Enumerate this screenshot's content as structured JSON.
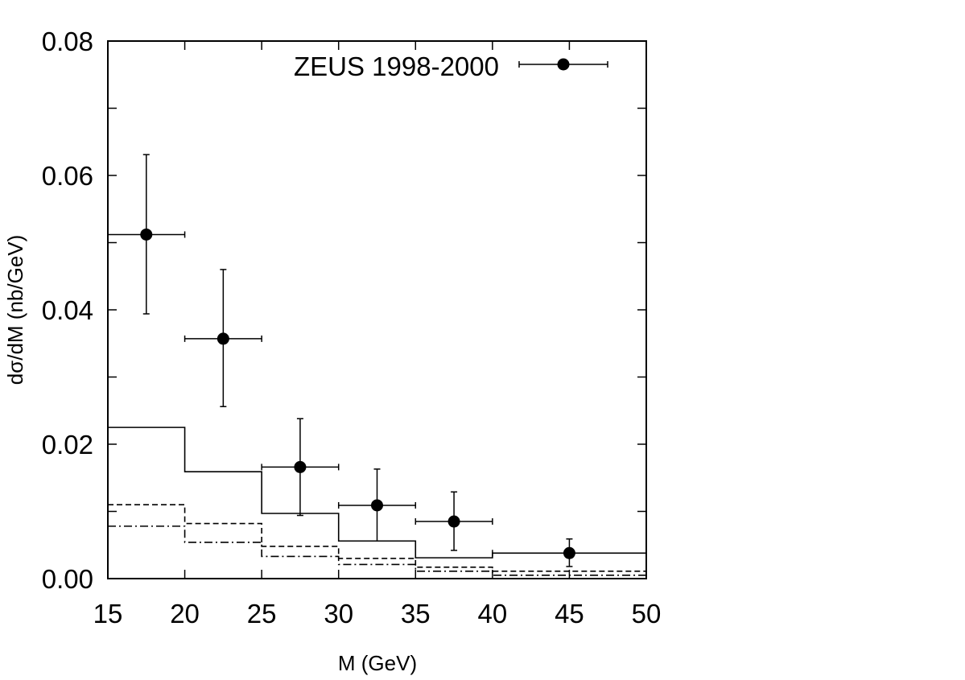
{
  "chart_data": {
    "type": "scatter",
    "title": "",
    "xlabel": "M (GeV)",
    "ylabel": "dσ/dM (nb/GeV)",
    "xlim": [
      15,
      50
    ],
    "ylim": [
      0,
      0.08
    ],
    "x_ticks": [
      15,
      20,
      25,
      30,
      35,
      40,
      45,
      50
    ],
    "x_tick_labels": [
      "15",
      "20",
      "25",
      "30",
      "35",
      "40",
      "45",
      "50"
    ],
    "y_ticks": [
      0,
      0.02,
      0.04,
      0.06,
      0.08
    ],
    "y_tick_labels": [
      "0.00",
      "0.02",
      "0.04",
      "0.06",
      "0.08"
    ],
    "grid": false,
    "legend_position": "top-right",
    "series": [
      {
        "name": "ZEUS 1998-2000",
        "kind": "points-with-errors",
        "color": "#000000",
        "points": [
          {
            "x": 17.5,
            "y": 0.0512,
            "xlo": 15,
            "xhi": 20,
            "ylo": 0.0394,
            "yhi": 0.0631
          },
          {
            "x": 22.5,
            "y": 0.0357,
            "xlo": 20,
            "xhi": 25,
            "ylo": 0.0256,
            "yhi": 0.046
          },
          {
            "x": 27.5,
            "y": 0.0166,
            "xlo": 25,
            "xhi": 30,
            "ylo": 0.0094,
            "yhi": 0.0238
          },
          {
            "x": 32.5,
            "y": 0.0109,
            "xlo": 30,
            "xhi": 35,
            "ylo": 0.0056,
            "yhi": 0.0163
          },
          {
            "x": 37.5,
            "y": 0.0085,
            "xlo": 35,
            "xhi": 40,
            "ylo": 0.0042,
            "yhi": 0.0129
          },
          {
            "x": 45.0,
            "y": 0.0038,
            "xlo": 40,
            "xhi": 50,
            "ylo": 0.0018,
            "yhi": 0.0059
          }
        ]
      },
      {
        "kind": "histogram",
        "style": "solid",
        "bin_edges": [
          15,
          20,
          25,
          30,
          35,
          40,
          50
        ],
        "values": [
          0.0225,
          0.0159,
          0.0097,
          0.0056,
          0.0031,
          0.0038
        ]
      },
      {
        "kind": "histogram",
        "style": "dashed",
        "bin_edges": [
          15,
          20,
          25,
          30,
          35,
          40,
          50
        ],
        "values": [
          0.011,
          0.0082,
          0.0048,
          0.003,
          0.0017,
          0.0011
        ]
      },
      {
        "kind": "histogram",
        "style": "dash-dot",
        "bin_edges": [
          15,
          20,
          25,
          30,
          35,
          40,
          50
        ],
        "values": [
          0.0078,
          0.0054,
          0.0033,
          0.0021,
          0.0011,
          0.0005
        ]
      }
    ]
  }
}
